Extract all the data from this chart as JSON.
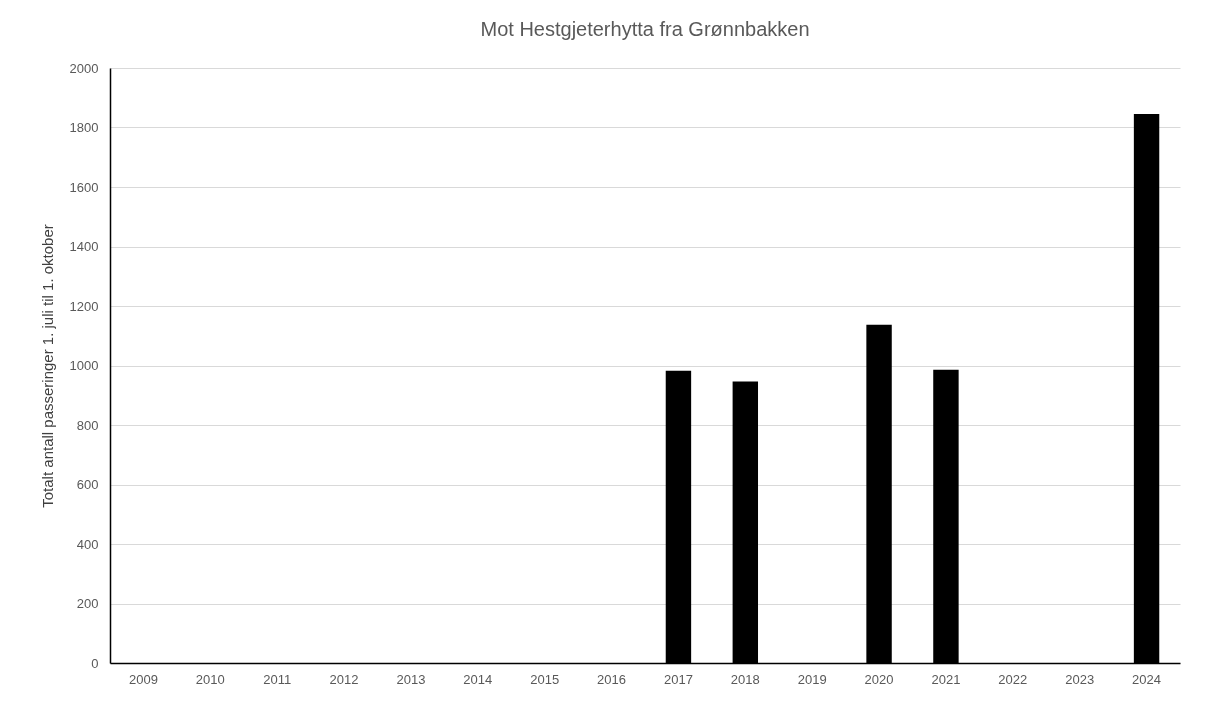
{
  "chart_data": {
    "type": "bar",
    "title": "Mot Hestgjeterhytta fra Grønnbakken",
    "ylabel": "Totalt antall passeringer 1. juli til 1. oktober",
    "categories": [
      "2009",
      "2010",
      "2011",
      "2012",
      "2013",
      "2014",
      "2015",
      "2016",
      "2017",
      "2018",
      "2019",
      "2020",
      "2021",
      "2022",
      "2023",
      "2024"
    ],
    "values": [
      null,
      null,
      null,
      null,
      null,
      null,
      null,
      null,
      982,
      946,
      null,
      1137,
      986,
      null,
      null,
      1845
    ],
    "color": "#000000",
    "ylim": [
      0,
      2000
    ],
    "yticks": [
      0,
      200,
      400,
      600,
      800,
      1000,
      1200,
      1400,
      1600,
      1800,
      2000
    ],
    "grid": "y"
  }
}
